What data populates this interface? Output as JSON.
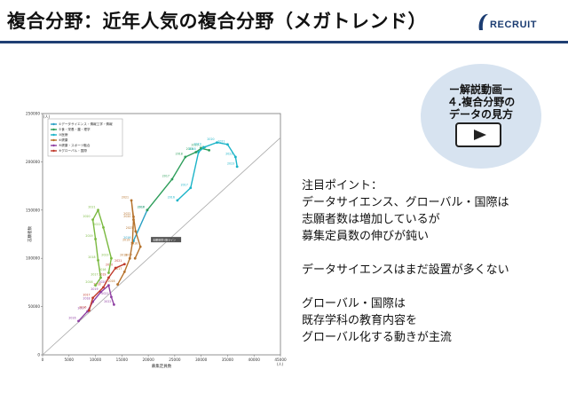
{
  "slide": {
    "title": "複合分野：近年人気の複合分野（メガトレンド）",
    "logo_text": "RECRUIT"
  },
  "video_badge": {
    "line1": "ー解説動画ー",
    "line2": "４.複合分野の",
    "line3": "データの見方",
    "icon": "play-icon"
  },
  "notes": {
    "heading": "注目ポイント：",
    "line1": "データサイエンス、グローバル・国際は",
    "line2": "志願者数は増加しているが",
    "line3": "募集定員数の伸びが鈍い",
    "line4": "データサイエンスはまだ設置が多くない",
    "line5": "グローバル・国際は",
    "line6": "既存学科の教育内容を",
    "line7": "グローバル化する動きが主流"
  },
  "chart_data": {
    "type": "scatter",
    "xlabel": "募集定員数",
    "ylabel": "志願者数",
    "xunit": "(人)",
    "yunit": "(人)",
    "xlim": [
      0,
      45000
    ],
    "ylim": [
      0,
      250000
    ],
    "xticks": [
      "0",
      "5000",
      "10000",
      "15000",
      "20000",
      "25000",
      "30000",
      "35000",
      "40000",
      "45000"
    ],
    "yticks": [
      "0",
      "50000",
      "100000",
      "150000",
      "200000",
      "250000"
    ],
    "reference_label": "志願倍率5倍ライン",
    "legend_position": "top-left",
    "series": [
      {
        "name": "①データサイエンス・情報工学・情報",
        "color": "#29a0c4",
        "marker": "circle",
        "points": [
          [
            17200,
            118000
          ],
          [
            19800,
            150000
          ]
        ]
      },
      {
        "name": "②食・栄養・農・理学",
        "color": "#2e9e5b",
        "marker": "circle",
        "points": [
          [
            19800,
            150000
          ],
          [
            24500,
            182000
          ],
          [
            27000,
            205000
          ],
          [
            29000,
            210000
          ],
          [
            30000,
            214000
          ],
          [
            31500,
            212000
          ]
        ]
      },
      {
        "name": "③医療",
        "color": "#1bb4c8",
        "marker": "circle",
        "points": [
          [
            25500,
            160000
          ],
          [
            28000,
            173000
          ],
          [
            29500,
            210000
          ],
          [
            30500,
            215000
          ],
          [
            33000,
            220000
          ],
          [
            35000,
            218000
          ],
          [
            36500,
            205000
          ],
          [
            36800,
            195000
          ]
        ]
      },
      {
        "name": "④健康",
        "color": "#b6722c",
        "marker": "circle",
        "points": [
          [
            14200,
            73000
          ],
          [
            15500,
            86000
          ],
          [
            16500,
            100000
          ],
          [
            17000,
            116000
          ],
          [
            17200,
            140000
          ],
          [
            16800,
            160000
          ],
          [
            17200,
            143000
          ],
          [
            17600,
            128000
          ],
          [
            18500,
            112000
          ],
          [
            17500,
            100000
          ]
        ]
      },
      {
        "name": "⑤健康・スポーツ融合",
        "color": "#8e3fa2",
        "marker": "circle",
        "points": [
          [
            6800,
            35000
          ],
          [
            8500,
            45000
          ],
          [
            9500,
            55000
          ],
          [
            11000,
            65000
          ],
          [
            12500,
            72000
          ],
          [
            13000,
            60000
          ],
          [
            13500,
            52000
          ]
        ]
      },
      {
        "name": "⑥グローバル・国際",
        "color": "#c0392b",
        "marker": "circle",
        "points": [
          [
            8800,
            46000
          ],
          [
            9500,
            59000
          ],
          [
            11500,
            70000
          ],
          [
            12500,
            80000
          ],
          [
            13800,
            90000
          ],
          [
            15500,
            94000
          ]
        ]
      },
      {
        "name": "",
        "color": "#7ab93f",
        "marker": "circle",
        "points": [
          [
            10000,
            72000
          ],
          [
            11000,
            80000
          ],
          [
            10500,
            98000
          ],
          [
            10000,
            120000
          ],
          [
            9500,
            140000
          ],
          [
            10500,
            150000
          ],
          [
            11500,
            132000
          ],
          [
            13000,
            100000
          ],
          [
            12500,
            85000
          ]
        ]
      }
    ],
    "point_labels": [
      "2016",
      "2017",
      "2018",
      "2019",
      "2020",
      "2021",
      "2022",
      "2023"
    ]
  }
}
